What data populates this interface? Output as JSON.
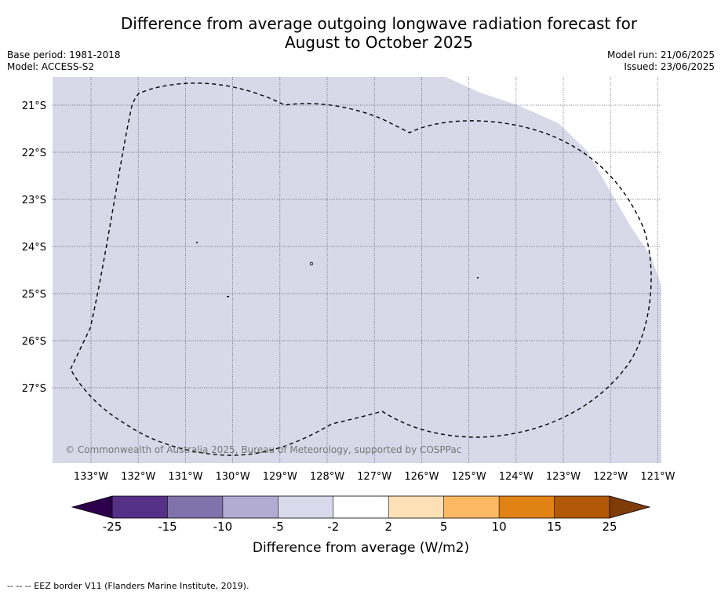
{
  "title": {
    "line1": "Difference from average outgoing longwave radiation forecast for",
    "line2": "August to October 2025"
  },
  "info_left": {
    "base_period": "Base period: 1981-2018",
    "model": "Model: ACCESS-S2"
  },
  "info_right": {
    "model_run": "Model run: 21/06/2025",
    "issued": "Issued: 23/06/2025"
  },
  "map": {
    "lat_labels": [
      "21°S",
      "22°S",
      "23°S",
      "24°S",
      "25°S",
      "26°S",
      "27°S"
    ],
    "lon_labels": [
      "133°W",
      "132°W",
      "131°W",
      "130°W",
      "129°W",
      "128°W",
      "127°W",
      "126°W",
      "125°W",
      "124°W",
      "123°W",
      "122°W",
      "121°W"
    ],
    "copyright": "© Commonwealth of Australia 2025, Bureau of Meteorology, supported by COSPPac",
    "field_color": "#d8d8e8"
  },
  "colorbar": {
    "tick_labels": [
      "-25",
      "-15",
      "-10",
      "-5",
      "-2",
      "2",
      "5",
      "10",
      "15",
      "25"
    ],
    "label": "Difference from average (W/m2)",
    "colors": [
      "#543087",
      "#8073ac",
      "#b2abd2",
      "#d8daeb",
      "#ffffff",
      "#fee0b6",
      "#fdb863",
      "#e08214",
      "#b35806"
    ],
    "under_color": "#2d004b",
    "over_color": "#7f3b08"
  },
  "footer": {
    "text": "--  --  -- EEZ border V11 (Flanders Marine Institute, 2019)."
  }
}
